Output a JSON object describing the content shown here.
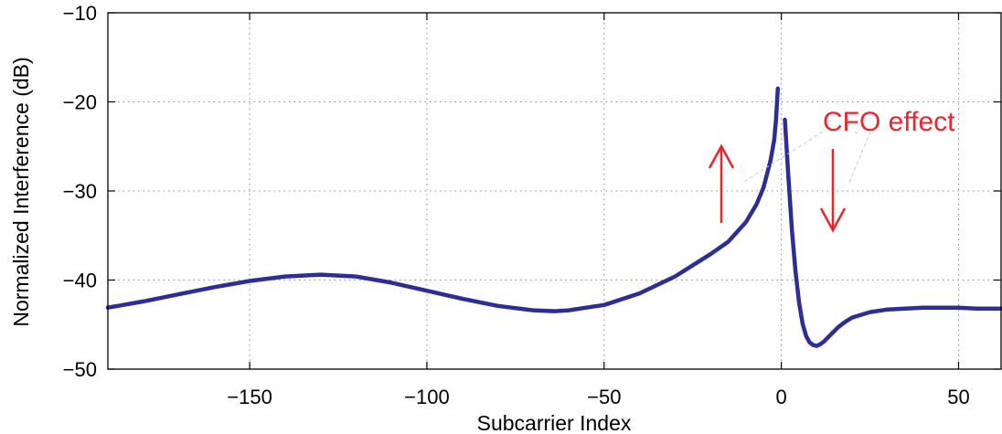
{
  "chart_data": {
    "type": "line",
    "title": "",
    "xlabel": "Subcarrier Index",
    "ylabel": "Normalized Interference (dB)",
    "xlim": [
      -190,
      62
    ],
    "ylim": [
      -50,
      -10
    ],
    "xticks": [
      -150,
      -100,
      -50,
      0,
      50
    ],
    "xtick_labels": [
      "−150",
      "−100",
      "−50",
      "0",
      "50"
    ],
    "yticks": [
      -50,
      -40,
      -30,
      -20,
      -10
    ],
    "ytick_labels": [
      "−50",
      "−40",
      "−30",
      "−20",
      "−10"
    ],
    "grid": true,
    "legend": "none",
    "series": [
      {
        "segment": "negative-subcarriers",
        "color": "#2b2e96",
        "x": [
          -190,
          -180,
          -170,
          -160,
          -150,
          -140,
          -130,
          -120,
          -110,
          -100,
          -90,
          -80,
          -70,
          -64,
          -60,
          -50,
          -40,
          -30,
          -20,
          -15,
          -10,
          -7,
          -5,
          -3,
          -2,
          -1.5,
          -1
        ],
        "y": [
          -43.1,
          -42.4,
          -41.6,
          -40.8,
          -40.1,
          -39.6,
          -39.4,
          -39.6,
          -40.3,
          -41.2,
          -42.1,
          -42.9,
          -43.4,
          -43.5,
          -43.4,
          -42.8,
          -41.5,
          -39.6,
          -37.1,
          -35.7,
          -33.5,
          -31.5,
          -29.6,
          -26.5,
          -24.2,
          -22.0,
          -18.5
        ]
      },
      {
        "segment": "positive-subcarriers",
        "color": "#2b2e96",
        "x": [
          1,
          2,
          3,
          4,
          5,
          6,
          7,
          8,
          9,
          10,
          11,
          12,
          14,
          16,
          18,
          20,
          25,
          30,
          35,
          40,
          45,
          50,
          55,
          62
        ],
        "y": [
          -22.0,
          -28.5,
          -34.5,
          -39.0,
          -42.5,
          -44.9,
          -46.3,
          -47.0,
          -47.3,
          -47.4,
          -47.2,
          -46.9,
          -46.1,
          -45.3,
          -44.7,
          -44.2,
          -43.6,
          -43.3,
          -43.2,
          -43.1,
          -43.1,
          -43.1,
          -43.2,
          -43.2
        ]
      }
    ],
    "annotations": [
      {
        "text": "CFO effect",
        "color": "#e8262e"
      }
    ]
  }
}
